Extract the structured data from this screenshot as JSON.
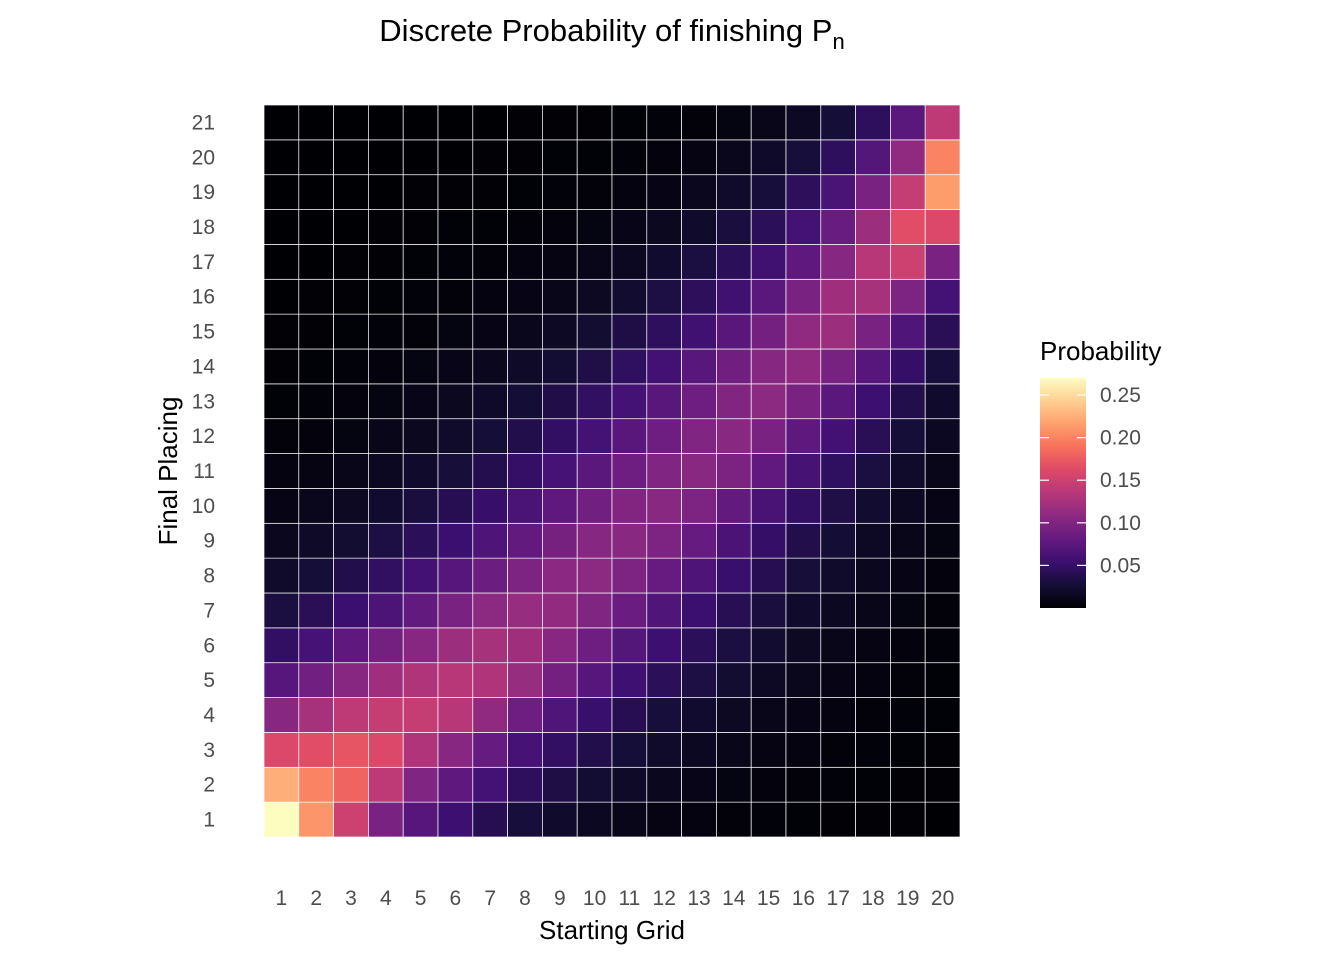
{
  "chart_data": {
    "type": "heatmap",
    "title": "Discrete Probability of finishing P",
    "title_subscript": "n",
    "xlabel": "Starting Grid",
    "ylabel": "Final Placing",
    "x": [
      "1",
      "2",
      "3",
      "4",
      "5",
      "6",
      "7",
      "8",
      "9",
      "10",
      "11",
      "12",
      "13",
      "14",
      "15",
      "16",
      "17",
      "18",
      "19",
      "20"
    ],
    "y": [
      "1",
      "2",
      "3",
      "4",
      "5",
      "6",
      "7",
      "8",
      "9",
      "10",
      "11",
      "12",
      "13",
      "14",
      "15",
      "16",
      "17",
      "18",
      "19",
      "20",
      "21"
    ],
    "colorscale": "magma",
    "value_range": [
      0.0,
      0.27
    ],
    "legend": {
      "title": "Probability",
      "position": "right",
      "ticks": [
        0.05,
        0.1,
        0.15,
        0.2,
        0.25
      ],
      "tick_labels": [
        "0.05",
        "0.10",
        "0.15",
        "0.20",
        "0.25"
      ]
    },
    "values_note": "rows indexed by Final Placing (1..21), columns by Starting Grid (1..20)",
    "values": [
      [
        0.27,
        0.21,
        0.15,
        0.095,
        0.072,
        0.055,
        0.04,
        0.03,
        0.022,
        0.016,
        0.011,
        0.008,
        0.006,
        0.004,
        0.003,
        0.002,
        0.001,
        0.001,
        0.001,
        0.0
      ],
      [
        0.225,
        0.2,
        0.18,
        0.14,
        0.1,
        0.078,
        0.06,
        0.045,
        0.034,
        0.026,
        0.019,
        0.014,
        0.01,
        0.007,
        0.005,
        0.004,
        0.003,
        0.002,
        0.001,
        0.001
      ],
      [
        0.16,
        0.165,
        0.17,
        0.16,
        0.13,
        0.105,
        0.082,
        0.062,
        0.048,
        0.037,
        0.028,
        0.021,
        0.016,
        0.011,
        0.008,
        0.006,
        0.004,
        0.003,
        0.002,
        0.001
      ],
      [
        0.105,
        0.125,
        0.14,
        0.145,
        0.145,
        0.135,
        0.11,
        0.088,
        0.068,
        0.052,
        0.04,
        0.03,
        0.023,
        0.017,
        0.012,
        0.009,
        0.006,
        0.004,
        0.003,
        0.002
      ],
      [
        0.072,
        0.09,
        0.105,
        0.12,
        0.13,
        0.135,
        0.13,
        0.115,
        0.092,
        0.072,
        0.056,
        0.043,
        0.033,
        0.025,
        0.018,
        0.013,
        0.009,
        0.006,
        0.004,
        0.002
      ],
      [
        0.048,
        0.062,
        0.078,
        0.092,
        0.105,
        0.118,
        0.125,
        0.12,
        0.105,
        0.088,
        0.07,
        0.055,
        0.043,
        0.032,
        0.024,
        0.017,
        0.012,
        0.008,
        0.005,
        0.003
      ],
      [
        0.032,
        0.042,
        0.054,
        0.066,
        0.08,
        0.095,
        0.108,
        0.115,
        0.112,
        0.1,
        0.085,
        0.068,
        0.054,
        0.041,
        0.031,
        0.022,
        0.016,
        0.011,
        0.007,
        0.004
      ],
      [
        0.021,
        0.028,
        0.037,
        0.047,
        0.059,
        0.072,
        0.086,
        0.098,
        0.107,
        0.108,
        0.098,
        0.083,
        0.067,
        0.052,
        0.04,
        0.029,
        0.021,
        0.014,
        0.009,
        0.005
      ],
      [
        0.014,
        0.019,
        0.025,
        0.033,
        0.043,
        0.054,
        0.067,
        0.08,
        0.093,
        0.104,
        0.106,
        0.098,
        0.082,
        0.065,
        0.05,
        0.037,
        0.027,
        0.018,
        0.012,
        0.007
      ],
      [
        0.009,
        0.013,
        0.017,
        0.023,
        0.031,
        0.04,
        0.051,
        0.064,
        0.077,
        0.09,
        0.101,
        0.106,
        0.098,
        0.08,
        0.063,
        0.048,
        0.035,
        0.024,
        0.016,
        0.009
      ],
      [
        0.006,
        0.008,
        0.011,
        0.016,
        0.022,
        0.029,
        0.038,
        0.049,
        0.062,
        0.075,
        0.088,
        0.1,
        0.106,
        0.097,
        0.079,
        0.061,
        0.046,
        0.032,
        0.021,
        0.012
      ],
      [
        0.004,
        0.005,
        0.007,
        0.011,
        0.015,
        0.021,
        0.028,
        0.037,
        0.048,
        0.06,
        0.074,
        0.088,
        0.1,
        0.106,
        0.096,
        0.077,
        0.059,
        0.042,
        0.028,
        0.016
      ],
      [
        0.002,
        0.003,
        0.005,
        0.007,
        0.01,
        0.015,
        0.02,
        0.027,
        0.036,
        0.047,
        0.06,
        0.074,
        0.088,
        0.101,
        0.108,
        0.095,
        0.075,
        0.055,
        0.037,
        0.022
      ],
      [
        0.001,
        0.002,
        0.003,
        0.005,
        0.007,
        0.01,
        0.014,
        0.019,
        0.026,
        0.035,
        0.046,
        0.059,
        0.073,
        0.089,
        0.104,
        0.11,
        0.094,
        0.072,
        0.05,
        0.03
      ],
      [
        0.001,
        0.001,
        0.002,
        0.003,
        0.004,
        0.007,
        0.009,
        0.013,
        0.018,
        0.025,
        0.034,
        0.045,
        0.058,
        0.074,
        0.092,
        0.11,
        0.118,
        0.095,
        0.068,
        0.042
      ],
      [
        0.0,
        0.001,
        0.001,
        0.002,
        0.003,
        0.004,
        0.006,
        0.009,
        0.012,
        0.017,
        0.024,
        0.033,
        0.044,
        0.058,
        0.075,
        0.096,
        0.12,
        0.125,
        0.098,
        0.06
      ],
      [
        0.0,
        0.0,
        0.001,
        0.001,
        0.002,
        0.003,
        0.004,
        0.006,
        0.008,
        0.011,
        0.016,
        0.023,
        0.032,
        0.043,
        0.058,
        0.078,
        0.104,
        0.135,
        0.15,
        0.095
      ],
      [
        0.0,
        0.0,
        0.0,
        0.001,
        0.001,
        0.002,
        0.002,
        0.004,
        0.005,
        0.007,
        0.01,
        0.015,
        0.022,
        0.031,
        0.043,
        0.06,
        0.084,
        0.118,
        0.165,
        0.16
      ],
      [
        0.0,
        0.0,
        0.0,
        0.0,
        0.001,
        0.001,
        0.001,
        0.002,
        0.003,
        0.004,
        0.006,
        0.009,
        0.014,
        0.021,
        0.03,
        0.044,
        0.064,
        0.095,
        0.145,
        0.215
      ],
      [
        0.0,
        0.0,
        0.0,
        0.0,
        0.0,
        0.0,
        0.001,
        0.001,
        0.002,
        0.002,
        0.003,
        0.005,
        0.008,
        0.013,
        0.02,
        0.03,
        0.045,
        0.07,
        0.11,
        0.2
      ],
      [
        0.0,
        0.0,
        0.0,
        0.0,
        0.0,
        0.0,
        0.0,
        0.001,
        0.001,
        0.001,
        0.002,
        0.003,
        0.004,
        0.007,
        0.011,
        0.018,
        0.028,
        0.045,
        0.075,
        0.14
      ]
    ]
  }
}
